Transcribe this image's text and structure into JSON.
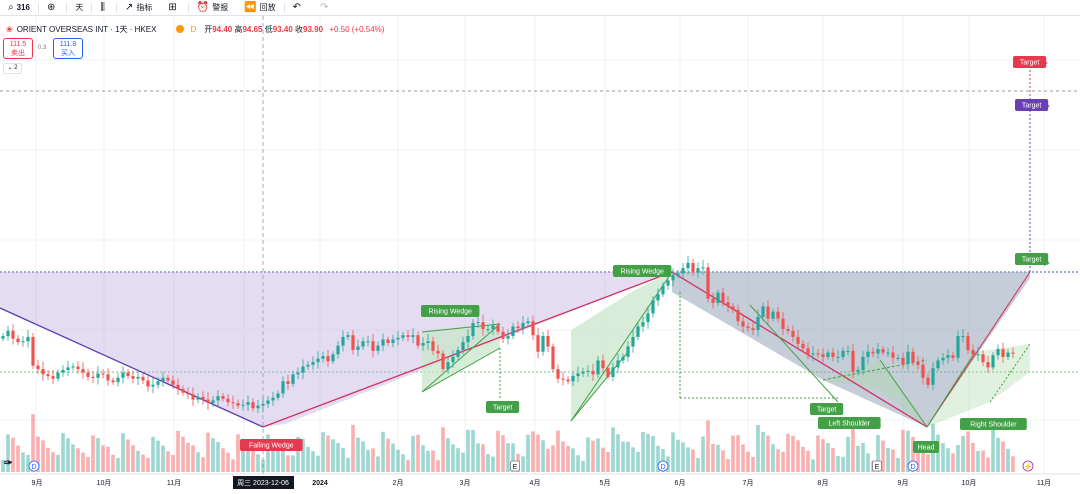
{
  "toolbar": {
    "symbol": "316",
    "interval": "天",
    "indicators": "指标",
    "alerts": "警报",
    "replay": "回放"
  },
  "info": {
    "title": "ORIENT OVERSEAS INT · 1天 · HKEX",
    "delay_label": "D",
    "open_label": "开",
    "open": "94.40",
    "high_label": "高",
    "high": "94.65",
    "low_label": "低",
    "low": "93.40",
    "close_label": "收",
    "close": "93.90",
    "change": "+0.50 (+0.54%)"
  },
  "quote": {
    "sell_price": "111.5",
    "sell_label": "卖出",
    "spread": "0.3",
    "buy_price": "111.8",
    "buy_label": "买入",
    "collapse_count": "2"
  },
  "crosshair_date": "周三 2023-12-06",
  "colors": {
    "up": "#26a69a",
    "down": "#ef5350",
    "pattern_green": "#43a047",
    "pattern_red": "#e53950",
    "pattern_purple": "#6a3fb5",
    "falling_line": "#5b3bb2",
    "rising_line": "#d32f5f",
    "head_fill": "#7e93a8",
    "wedge_fill": "#c8e6c9"
  },
  "chart_data": {
    "type": "candlestick",
    "x_labels": [
      "9月",
      "10月",
      "11月",
      "2024",
      "2月",
      "3月",
      "4月",
      "5月",
      "6月",
      "7月",
      "8月",
      "9月",
      "10月",
      "11月"
    ],
    "events": [
      "D",
      "E",
      "D",
      "E",
      "D"
    ],
    "patterns": [
      {
        "type": "Falling Wedge"
      },
      {
        "type": "Rising Wedge"
      },
      {
        "type": "Rising Wedge"
      },
      {
        "type": "Head and Shoulders",
        "parts": [
          "Left Shoulder",
          "Head",
          "Right Shoulder"
        ]
      }
    ],
    "target_label": "Target",
    "closes": [
      96.5,
      97.1,
      96.2,
      95.8,
      95.9,
      96.4,
      93.1,
      92.7,
      92.1,
      91.9,
      91.6,
      92.3,
      92.6,
      92.9,
      93.0,
      92.7,
      92.3,
      91.8,
      91.7,
      92.2,
      92.1,
      91.4,
      91.2,
      91.7,
      92.3,
      91.9,
      91.6,
      91.8,
      91.4,
      90.7,
      90.9,
      91.3,
      91.7,
      91.4,
      90.9,
      90.4,
      90.0,
      89.8,
      89.2,
      89.5,
      89.2,
      88.8,
      89.1,
      89.6,
      89.3,
      88.9,
      88.8,
      88.5,
      88.6,
      88.9,
      88.2,
      88.5,
      88.7,
      89.1,
      89.4,
      89.9,
      91.3,
      91.0,
      92.1,
      92.3,
      93.0,
      93.2,
      93.5,
      93.9,
      94.2,
      93.6,
      94.4,
      95.4,
      96.4,
      96.6,
      94.9,
      95.3,
      95.9,
      95.9,
      94.8,
      95.4,
      96.1,
      95.7,
      96.1,
      96.3,
      96.6,
      96.4,
      96.6,
      95.4,
      95.7,
      95.9,
      94.8,
      94.5,
      92.7,
      93.5,
      94.1,
      94.9,
      95.8,
      96.5,
      98.0,
      98.1,
      97.3,
      97.3,
      97.7,
      97.0,
      96.2,
      96.5,
      97.6,
      97.4,
      98.0,
      98.2,
      96.6,
      94.7,
      96.5,
      95.3,
      92.7,
      91.6,
      91.5,
      91.3,
      91.9,
      92.2,
      92.4,
      92.5,
      92.1,
      93.7,
      92.8,
      91.8,
      92.9,
      93.7,
      94.1,
      95.3,
      96.4,
      97.6,
      98.1,
      99.1,
      100.6,
      101.3,
      102.3,
      102.9,
      103.5,
      103.7,
      104.3,
      104.9,
      103.8,
      104.3,
      104.4,
      100.8,
      100.3,
      101.5,
      100.4,
      99.9,
      99.5,
      98.2,
      97.6,
      97.4,
      97.2,
      98.7,
      99.9,
      98.5,
      99.3,
      98.5,
      97.3,
      97.1,
      96.4,
      95.6,
      95.1,
      94.4,
      94.5,
      94.4,
      94.1,
      94.6,
      94.1,
      94.1,
      94.8,
      94.8,
      92.4,
      92.6,
      94.1,
      94.7,
      94.5,
      95.0,
      94.6,
      94.6,
      94.0,
      94.0,
      93.3,
      94.7,
      93.5,
      93.2,
      91.7,
      90.9,
      92.8,
      93.7,
      94.0,
      94.3,
      94.0,
      96.5,
      96.5,
      94.9,
      94.4,
      94.4,
      93.5,
      92.9,
      94.3,
      95.0,
      94.1,
      94.6,
      94.5
    ]
  }
}
